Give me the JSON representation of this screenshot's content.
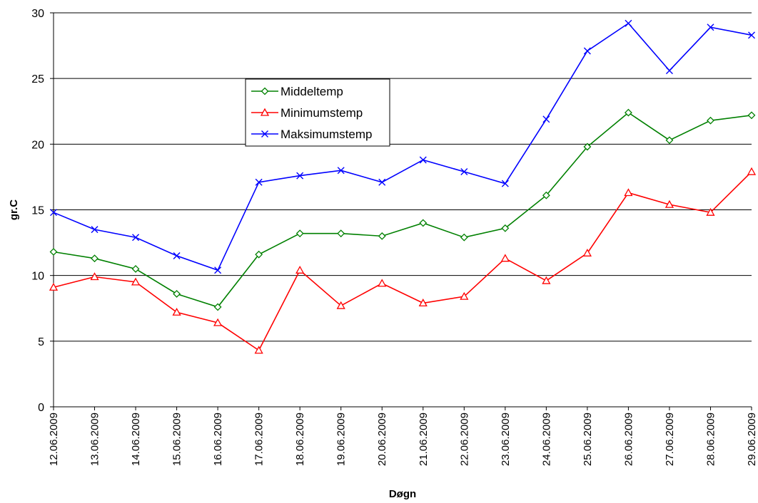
{
  "chart_data": {
    "type": "line",
    "title": "",
    "xlabel": "Døgn",
    "ylabel": "gr.C",
    "ylim": [
      0,
      30
    ],
    "yticks": [
      0,
      5,
      10,
      15,
      20,
      25,
      30
    ],
    "grid": "horizontal",
    "legend_position": "upper-left-center",
    "categories": [
      "12.06.2009",
      "13.06.2009",
      "14.06.2009",
      "15.06.2009",
      "16.06.2009",
      "17.06.2009",
      "18.06.2009",
      "19.06.2009",
      "20.06.2009",
      "21.06.2009",
      "22.06.2009",
      "23.06.2009",
      "24.06.2009",
      "25.06.2009",
      "26.06.2009",
      "27.06.2009",
      "28.06.2009",
      "29.06.2009"
    ],
    "series": [
      {
        "name": "Middeltemp",
        "color": "#008000",
        "marker": "diamond",
        "values": [
          11.8,
          11.3,
          10.5,
          8.6,
          7.6,
          11.6,
          13.2,
          13.2,
          13.0,
          14.0,
          12.9,
          13.6,
          16.1,
          19.8,
          22.4,
          20.3,
          21.8,
          22.2
        ]
      },
      {
        "name": "Minimumstemp",
        "color": "#ff0000",
        "marker": "triangle",
        "values": [
          9.1,
          9.9,
          9.5,
          7.2,
          6.4,
          4.3,
          10.4,
          7.7,
          9.4,
          7.9,
          8.4,
          11.3,
          9.6,
          11.7,
          16.3,
          15.4,
          14.8,
          17.9
        ]
      },
      {
        "name": "Maksimumstemp",
        "color": "#0000ff",
        "marker": "x",
        "values": [
          14.8,
          13.5,
          12.9,
          11.5,
          10.4,
          17.1,
          17.6,
          18.0,
          17.1,
          18.8,
          17.9,
          17.0,
          21.9,
          27.1,
          29.2,
          25.6,
          28.9,
          28.3
        ]
      }
    ]
  }
}
